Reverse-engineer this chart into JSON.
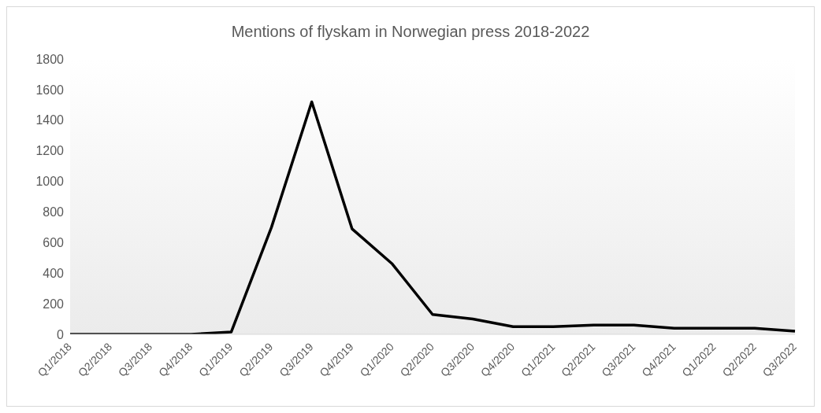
{
  "chart_data": {
    "type": "line",
    "title": "Mentions of flyskam in Norwegian press 2018-2022",
    "categories": [
      "Q1/2018",
      "Q2/2018",
      "Q3/2018",
      "Q4/2018",
      "Q1/2019",
      "Q2/2019",
      "Q3/2019",
      "Q4/2019",
      "Q1/2020",
      "Q2/2020",
      "Q3/2020",
      "Q4/2020",
      "Q1/2021",
      "Q2/2021",
      "Q3/2021",
      "Q4/2021",
      "Q1/2022",
      "Q2/2022",
      "Q3/2022"
    ],
    "series": [
      {
        "color": "#000000",
        "values": [
          0,
          0,
          0,
          0,
          15,
          700,
          1520,
          690,
          460,
          130,
          100,
          50,
          50,
          60,
          60,
          40,
          40,
          40,
          20
        ]
      }
    ],
    "ylim": [
      0,
      1800
    ],
    "yticks": [
      0,
      200,
      400,
      600,
      800,
      1000,
      1200,
      1400,
      1600,
      1800
    ],
    "grid": false,
    "legend": false,
    "marker": "none",
    "line_style": "solid"
  }
}
